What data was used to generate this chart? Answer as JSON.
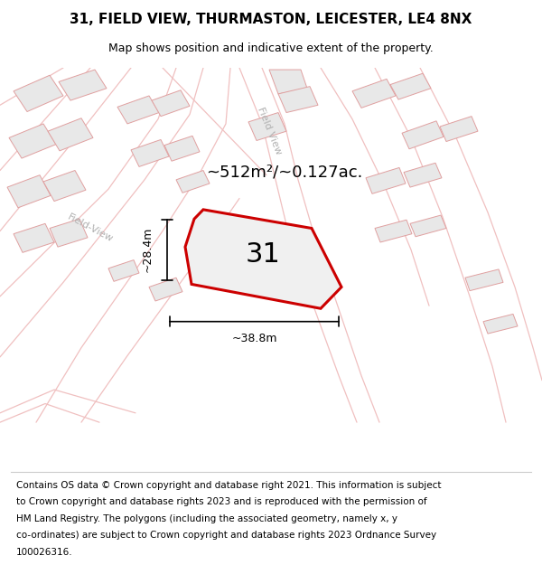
{
  "title": "31, FIELD VIEW, THURMASTON, LEICESTER, LE4 8NX",
  "subtitle": "Map shows position and indicative extent of the property.",
  "footer_lines": [
    "Contains OS data © Crown copyright and database right 2021. This information is subject",
    "to Crown copyright and database rights 2023 and is reproduced with the permission of",
    "HM Land Registry. The polygons (including the associated geometry, namely x, y",
    "co-ordinates) are subject to Crown copyright and database rights 2023 Ordnance Survey",
    "100026316."
  ],
  "area_label": "~512m²/~0.127ac.",
  "width_label": "~38.8m",
  "height_label": "~28.4m",
  "plot_number": "31",
  "bg_color": "#ffffff",
  "road_color": "#f0c0c0",
  "building_fill": "#e8e8e8",
  "building_edge": "#e0a0a0",
  "highlight_fill": "#f0f0f0",
  "highlight_edge": "#cc0000",
  "title_fontsize": 11,
  "subtitle_fontsize": 9,
  "footer_fontsize": 7.5,
  "label_fontsize": 13,
  "plot_label_fontsize": 22,
  "road_label_fontsize": 8
}
